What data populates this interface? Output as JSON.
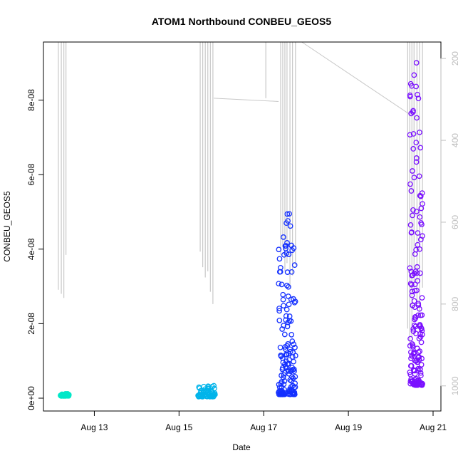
{
  "chart_data": {
    "type": "scatter",
    "title": "ATOM1 Northbound CONBEU_GEOS5",
    "xlabel": "Date",
    "ylabel": "CONBEU_GEOS5",
    "x_unit": "days in August",
    "xlim": [
      12.0,
      21.0
    ],
    "ylim": [
      0,
      9.5e-08
    ],
    "x_ticks": [
      {
        "value": 13,
        "label": "Aug 13"
      },
      {
        "value": 15,
        "label": "Aug 15"
      },
      {
        "value": 17,
        "label": "Aug 17"
      },
      {
        "value": 19,
        "label": "Aug 19"
      },
      {
        "value": 21,
        "label": "Aug 21"
      }
    ],
    "y_ticks": [
      {
        "value": 0,
        "label": "0e+00"
      },
      {
        "value": 2e-08,
        "label": "2e-08"
      },
      {
        "value": 4e-08,
        "label": "4e-08"
      },
      {
        "value": 6e-08,
        "label": "6e-08"
      },
      {
        "value": 8e-08,
        "label": "8e-08"
      }
    ],
    "y2_axis": {
      "description": "secondary right axis (pressure-like, reversed), gray",
      "ylim": [
        1030,
        165
      ],
      "ticks": [
        200,
        400,
        600,
        800,
        1000
      ],
      "color": "#bdbdbd"
    },
    "series": [
      {
        "color": "#00e8c8",
        "x_range": [
          12.2,
          12.4
        ],
        "y_range": [
          6e-10,
          1.2e-09
        ],
        "points": 40
      },
      {
        "color": "#00b4ea",
        "x_range": [
          15.45,
          15.85
        ],
        "y_range": [
          4e-10,
          3.4e-09
        ],
        "points": 60
      },
      {
        "color": "#1430ff",
        "x_range": [
          17.35,
          17.75
        ],
        "y_range": [
          1e-09,
          5.05e-08
        ],
        "points": 150
      },
      {
        "color": "#7a10ff",
        "x_range": [
          20.45,
          20.75
        ],
        "y_range": [
          3.5e-09,
          9.1e-08
        ],
        "points": 170
      }
    ],
    "altitude_trace": {
      "color": "#c8c8c8",
      "x": [
        12.15,
        12.22,
        12.28,
        12.33,
        15.5,
        15.56,
        15.62,
        15.68,
        15.74,
        15.8,
        17.05,
        17.4,
        17.45,
        17.5,
        17.55,
        17.62,
        17.68,
        17.75,
        20.4,
        20.45,
        20.5,
        20.55,
        20.62,
        20.68,
        20.75
      ],
      "y2": [
        765,
        775,
        785,
        680,
        672,
        710,
        735,
        720,
        770,
        800,
        297,
        680,
        660,
        720,
        700,
        760,
        730,
        705,
        860,
        900,
        880,
        760,
        795,
        820,
        760
      ]
    }
  }
}
